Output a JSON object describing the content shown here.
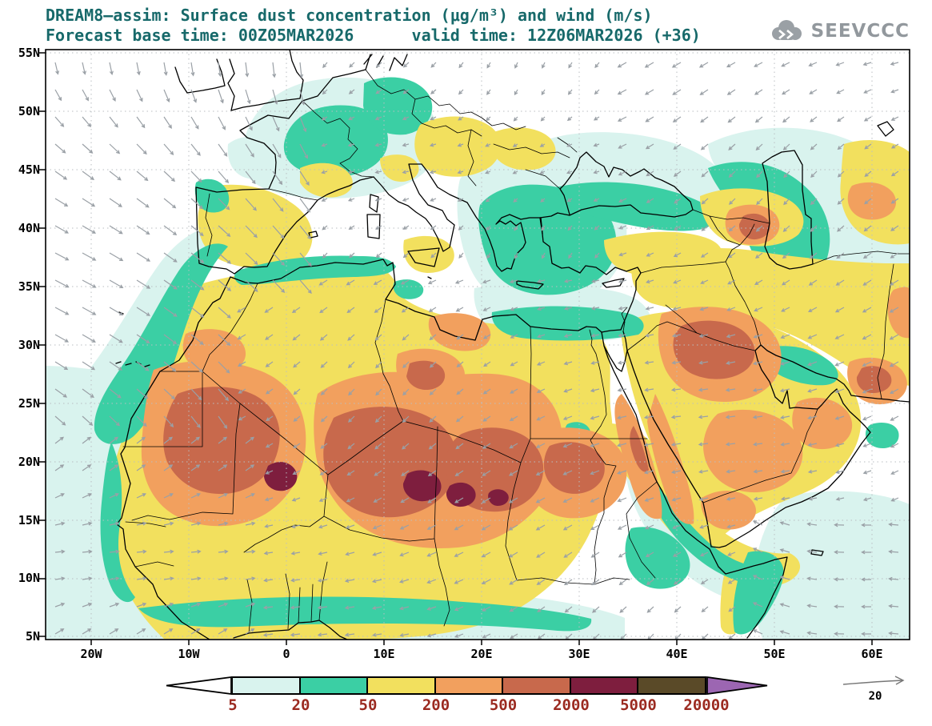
{
  "header": {
    "title_line1": "DREAM8—assim: Surface dust concentration (μg/m³) and wind (m/s)",
    "title_line2": "Forecast base time: 00Z05MAR2026      valid time: 12Z06MAR2026 (+36)",
    "title_color": "#17696a",
    "logo_text": "SEEVCCC",
    "logo_color": "#92989d"
  },
  "axes": {
    "lat_ticks": [
      "55N",
      "50N",
      "45N",
      "40N",
      "35N",
      "30N",
      "25N",
      "20N",
      "15N",
      "10N",
      "5N"
    ],
    "lon_ticks": [
      "20W",
      "10W",
      "0",
      "10E",
      "20E",
      "30E",
      "40E",
      "50E",
      "60E"
    ]
  },
  "colorbar": {
    "labels": [
      "5",
      "20",
      "50",
      "200",
      "500",
      "2000",
      "5000",
      "20000"
    ],
    "label_color": "#9b2a20"
  },
  "wind_reference": {
    "label": "20"
  },
  "chart_data": {
    "type": "heatmap",
    "title": "DREAM8—assim: Surface dust concentration (μg/m³) and wind (m/s)",
    "subtitle": "Forecast base time: 00Z05MAR2026  valid time: 12Z06MAR2026 (+36)",
    "variable": "surface dust concentration",
    "units": "μg/m³",
    "wind_units": "m/s",
    "forecast_base_time": "00Z05MAR2026",
    "valid_time": "12Z06MAR2026",
    "lead_hours": "+36",
    "x_ticks": [
      "20W",
      "10W",
      "0",
      "10E",
      "20E",
      "30E",
      "40E",
      "50E",
      "60E"
    ],
    "y_ticks": [
      "55N",
      "50N",
      "45N",
      "40N",
      "35N",
      "30N",
      "25N",
      "20N",
      "15N",
      "10N",
      "5N"
    ],
    "lon_range": [
      -25,
      64
    ],
    "lat_range": [
      5,
      55
    ],
    "contour_levels": [
      5,
      20,
      50,
      200,
      500,
      2000,
      5000,
      20000
    ],
    "palette": [
      "#ffffff",
      "#d9f3ee",
      "#3bcfa4",
      "#f2e05e",
      "#f2a05e",
      "#c8694c",
      "#7e1e3e",
      "#5a4a28",
      "#9c66b2"
    ],
    "wind_reference_ms": 20,
    "wind_arrow_color": "#9aa0a6",
    "legend_position": "bottom",
    "grid": "dotted"
  }
}
